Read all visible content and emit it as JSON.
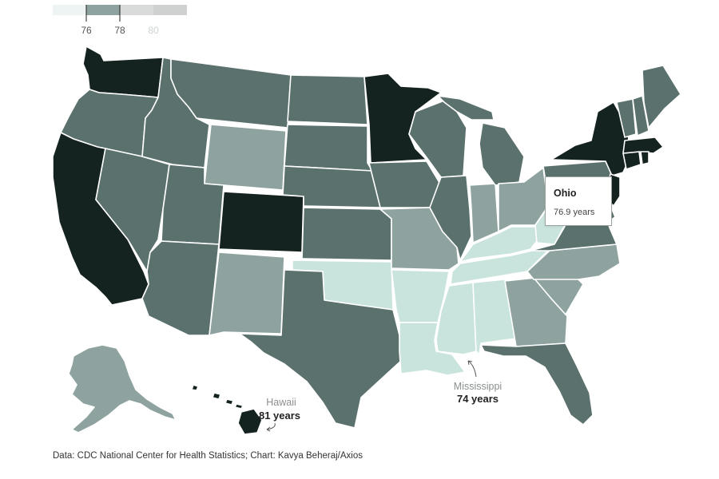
{
  "legend": {
    "ticks": [
      "76",
      "78",
      "80"
    ],
    "colors": [
      "#eef4f3",
      "#8ea39f",
      "#d9dbdb",
      "#cfd1d1"
    ]
  },
  "palette": {
    "lowest": "#c9e3dd",
    "low": "#8ea39f",
    "mid": "#5b716d",
    "high": "#142220"
  },
  "tooltip": {
    "state": "Ohio",
    "value": "76.9 years"
  },
  "annotations": {
    "hawaii": {
      "name": "Hawaii",
      "value": "81 years"
    },
    "mississippi": {
      "name": "Mississippi",
      "value": "74 years"
    }
  },
  "source": "Data: CDC National Center for Health Statistics; Chart: Kavya Beheraj/Axios"
}
